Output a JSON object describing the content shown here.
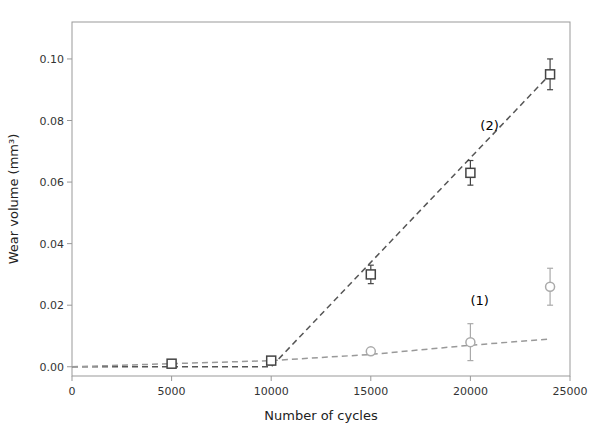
{
  "chart_data": {
    "type": "scatter",
    "xlabel": "Number of cycles",
    "ylabel": "Wear volume (mm³)",
    "xlim": [
      0,
      25000
    ],
    "ylim": [
      -0.003,
      0.112
    ],
    "xticks": [
      0,
      5000,
      10000,
      15000,
      20000,
      25000
    ],
    "yticks": [
      {
        "value": 0.0,
        "label": "0.00"
      },
      0.02,
      0.04,
      0.06,
      0.08,
      {
        "value": 0.1,
        "label": "0.10"
      }
    ],
    "grid": false,
    "series": [
      {
        "type": "line",
        "line_style": "dashed",
        "color": "#555555",
        "x": [
          0,
          10000,
          24000
        ],
        "values": [
          0.0,
          0.0,
          0.095
        ]
      },
      {
        "type": "line",
        "line_style": "dashed",
        "color": "#999999",
        "x": [
          0,
          5000,
          10000,
          15000,
          20000,
          24000
        ],
        "values": [
          0.0,
          0.001,
          0.002,
          0.004,
          0.007,
          0.009
        ]
      },
      {
        "type": "scatter",
        "marker": "square",
        "color": "#444444",
        "x": [
          5000,
          10000,
          15000,
          20000,
          24000
        ],
        "values": [
          0.001,
          0.002,
          0.03,
          0.063,
          0.095
        ],
        "errors": [
          0.0005,
          0.001,
          0.003,
          0.004,
          0.005
        ]
      },
      {
        "type": "scatter",
        "marker": "circle",
        "color": "#aaaaaa",
        "x": [
          15000,
          20000,
          24000
        ],
        "values": [
          0.005,
          0.008,
          0.026
        ],
        "errors": [
          0.001,
          0.006,
          0.006
        ]
      }
    ],
    "annotations": [
      {
        "text": "(2)",
        "x": 20500,
        "y": 0.077
      },
      {
        "text": "(1)",
        "x": 20000,
        "y": 0.02
      }
    ]
  }
}
